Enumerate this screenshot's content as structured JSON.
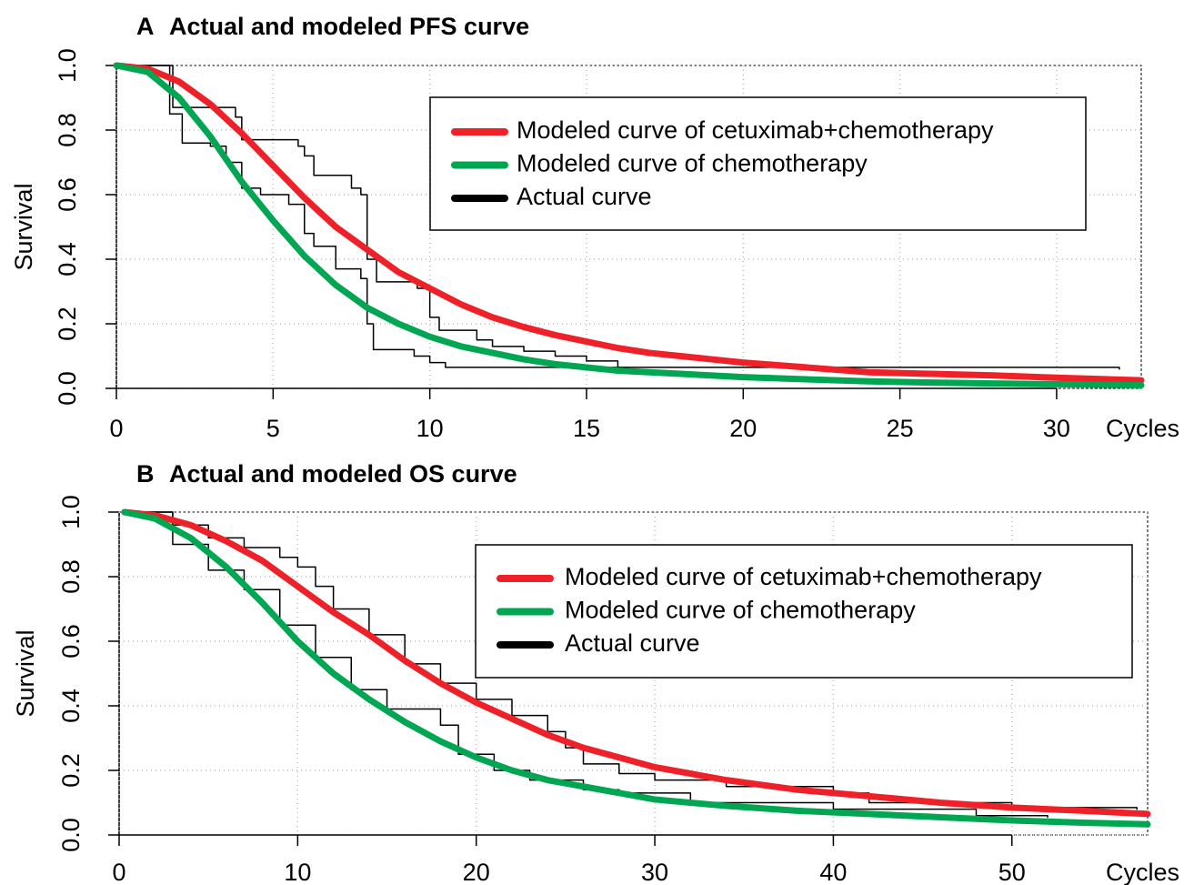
{
  "chart_data": [
    {
      "type": "line",
      "panel": "A",
      "title": "Actual and modeled PFS curve",
      "ylabel": "Survival",
      "xlabel": "Cycles",
      "xlim": [
        0,
        32.7
      ],
      "xticks": [
        0,
        5,
        10,
        15,
        20,
        25,
        30
      ],
      "ylim": [
        0,
        1
      ],
      "yticks": [
        {
          "value": 0,
          "label": "0.0"
        },
        0.2,
        0.4,
        0.6,
        0.8,
        {
          "value": 1,
          "label": "1.0"
        }
      ],
      "grid": true,
      "legend": "upper right",
      "series": [
        {
          "name": "Modeled curve of cetuximab+chemotherapy",
          "color": "#ee2028",
          "linewidth": 7,
          "x": [
            0,
            1,
            2,
            3,
            4,
            5,
            6,
            7,
            8,
            9,
            10,
            11,
            12,
            13,
            14,
            15,
            16,
            17,
            18,
            19,
            20,
            22,
            24,
            26,
            28,
            30,
            32.7
          ],
          "values": [
            1,
            0.99,
            0.95,
            0.88,
            0.79,
            0.69,
            0.59,
            0.5,
            0.43,
            0.36,
            0.31,
            0.26,
            0.22,
            0.19,
            0.165,
            0.145,
            0.125,
            0.11,
            0.1,
            0.09,
            0.08,
            0.065,
            0.05,
            0.045,
            0.04,
            0.033,
            0.025
          ]
        },
        {
          "name": "Modeled curve of chemotherapy",
          "color": "#00a651",
          "linewidth": 7,
          "x": [
            0,
            1,
            2,
            3,
            4,
            5,
            6,
            7,
            8,
            9,
            10,
            11,
            12,
            13,
            14,
            15,
            16,
            18,
            20,
            22,
            24,
            26,
            28,
            30,
            32.7
          ],
          "values": [
            1,
            0.98,
            0.9,
            0.78,
            0.64,
            0.52,
            0.41,
            0.32,
            0.25,
            0.2,
            0.16,
            0.13,
            0.11,
            0.09,
            0.075,
            0.065,
            0.055,
            0.045,
            0.035,
            0.028,
            0.022,
            0.018,
            0.015,
            0.013,
            0.01
          ]
        },
        {
          "name": "Actual curve",
          "color": "#000000",
          "linewidth": 1.5,
          "drawstyle": "steps-post",
          "x": [
            0,
            1.8,
            3.8,
            4,
            5.8,
            6,
            6.3,
            7.5,
            7.8,
            8,
            8.3,
            9.6,
            10,
            10.3,
            11.5,
            12,
            13,
            14,
            15,
            16,
            32
          ],
          "values": [
            1,
            0.87,
            0.84,
            0.77,
            0.75,
            0.72,
            0.66,
            0.62,
            0.6,
            0.4,
            0.33,
            0.31,
            0.22,
            0.18,
            0.15,
            0.13,
            0.115,
            0.1,
            0.085,
            0.065,
            0.06
          ]
        },
        {
          "color": "#000000",
          "linewidth": 1.5,
          "drawstyle": "steps-post",
          "x": [
            0,
            1.7,
            2.1,
            3,
            3.5,
            4,
            4.6,
            5.5,
            6,
            6.3,
            7,
            7.8,
            8,
            8.2,
            9.5,
            10,
            10.5,
            16
          ],
          "values": [
            1,
            0.85,
            0.76,
            0.75,
            0.7,
            0.62,
            0.6,
            0.57,
            0.48,
            0.44,
            0.37,
            0.34,
            0.2,
            0.12,
            0.1,
            0.08,
            0.065,
            0.06
          ]
        }
      ]
    },
    {
      "type": "line",
      "panel": "B",
      "title": "Actual and modeled OS curve",
      "ylabel": "Survival",
      "xlabel": "Cycles",
      "xlim": [
        0,
        57.6
      ],
      "xticks": [
        0,
        10,
        20,
        30,
        40,
        50
      ],
      "ylim": [
        0,
        1
      ],
      "yticks": [
        {
          "value": 0,
          "label": "0.0"
        },
        0.2,
        0.4,
        0.6,
        0.8,
        {
          "value": 1,
          "label": "1.0"
        }
      ],
      "grid": true,
      "legend": "upper right",
      "series": [
        {
          "name": "Modeled curve of cetuximab+chemotherapy",
          "color": "#ee2028",
          "linewidth": 7,
          "x": [
            0.3,
            2,
            4,
            6,
            8,
            10,
            12,
            14,
            16,
            18,
            20,
            22,
            24,
            26,
            28,
            30,
            34,
            38,
            42,
            46,
            50,
            54,
            57.6
          ],
          "values": [
            1,
            0.99,
            0.96,
            0.91,
            0.85,
            0.77,
            0.69,
            0.62,
            0.54,
            0.47,
            0.41,
            0.36,
            0.31,
            0.27,
            0.24,
            0.21,
            0.17,
            0.14,
            0.12,
            0.1,
            0.085,
            0.075,
            0.065
          ]
        },
        {
          "name": "Modeled curve of chemotherapy",
          "color": "#00a651",
          "linewidth": 7,
          "x": [
            0.3,
            2,
            4,
            6,
            8,
            10,
            12,
            14,
            16,
            18,
            20,
            22,
            24,
            26,
            28,
            30,
            34,
            38,
            42,
            46,
            50,
            54,
            57.6
          ],
          "values": [
            1,
            0.98,
            0.92,
            0.83,
            0.72,
            0.6,
            0.5,
            0.42,
            0.35,
            0.29,
            0.24,
            0.2,
            0.17,
            0.15,
            0.13,
            0.11,
            0.09,
            0.075,
            0.065,
            0.055,
            0.045,
            0.038,
            0.033
          ]
        },
        {
          "name": "Actual curve",
          "color": "#000000",
          "linewidth": 1.5,
          "drawstyle": "steps-post",
          "x": [
            0.3,
            3,
            5,
            7,
            9,
            10,
            11,
            12,
            14,
            16,
            18,
            20,
            22,
            24,
            25,
            26,
            28,
            30,
            34,
            40,
            42,
            50,
            57
          ],
          "values": [
            1,
            0.96,
            0.92,
            0.89,
            0.86,
            0.83,
            0.77,
            0.7,
            0.62,
            0.53,
            0.47,
            0.42,
            0.37,
            0.32,
            0.27,
            0.22,
            0.19,
            0.17,
            0.15,
            0.13,
            0.1,
            0.085,
            0.08
          ]
        },
        {
          "color": "#000000",
          "linewidth": 1.5,
          "drawstyle": "steps-post",
          "x": [
            0.3,
            3,
            5,
            7,
            9,
            11,
            13,
            15,
            18,
            19,
            21,
            23,
            26,
            28,
            32,
            40,
            48,
            52
          ],
          "values": [
            1,
            0.9,
            0.82,
            0.76,
            0.65,
            0.55,
            0.45,
            0.39,
            0.34,
            0.25,
            0.2,
            0.17,
            0.14,
            0.13,
            0.1,
            0.08,
            0.06,
            0.055
          ]
        }
      ]
    }
  ]
}
